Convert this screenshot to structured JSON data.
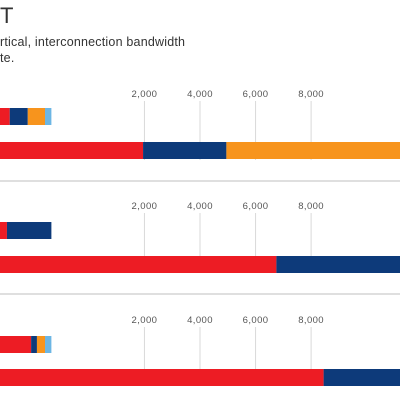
{
  "header": {
    "title": "T",
    "subtitle_lines": [
      "rtical, interconnection bandwidth",
      "te."
    ]
  },
  "colors": {
    "red": "#ed1c24",
    "navy": "#0d3a7a",
    "orange": "#f7941d",
    "light_blue": "#6cb6e4",
    "gridline": "#d9d9d9",
    "divider": "#bfbfbf"
  },
  "chart_data": [
    {
      "type": "bar",
      "orientation": "horizontal",
      "stacked": true,
      "xlim": [
        -3200,
        11200
      ],
      "xticks": [
        2000,
        4000,
        6000,
        8000
      ],
      "tick_labels": [
        "2,000",
        "4,000",
        "6,000",
        "8,000"
      ],
      "bars": [
        {
          "segments": [
            {
              "color": "red",
              "start": -3200,
              "end": -2850
            },
            {
              "color": "navy",
              "start": -2850,
              "end": -2200
            },
            {
              "color": "orange",
              "start": -2200,
              "end": -1580
            },
            {
              "color": "light_blue",
              "start": -1580,
              "end": -1350
            }
          ]
        },
        {
          "segments": [
            {
              "color": "red",
              "start": -3200,
              "end": 1950
            },
            {
              "color": "navy",
              "start": 1950,
              "end": 4950
            },
            {
              "color": "orange",
              "start": 4950,
              "end": 11200
            }
          ]
        }
      ]
    },
    {
      "type": "bar",
      "orientation": "horizontal",
      "stacked": true,
      "xlim": [
        -3200,
        11200
      ],
      "xticks": [
        2000,
        4000,
        6000,
        8000
      ],
      "tick_labels": [
        "2,000",
        "4,000",
        "6,000",
        "8,000"
      ],
      "bars": [
        {
          "segments": [
            {
              "color": "red",
              "start": -3200,
              "end": -2950
            },
            {
              "color": "navy",
              "start": -2950,
              "end": -1350
            }
          ]
        },
        {
          "segments": [
            {
              "color": "red",
              "start": -3200,
              "end": 6750
            },
            {
              "color": "navy",
              "start": 6750,
              "end": 11200
            }
          ]
        }
      ]
    },
    {
      "type": "bar",
      "orientation": "horizontal",
      "stacked": true,
      "xlim": [
        -3200,
        11200
      ],
      "xticks": [
        2000,
        4000,
        6000,
        8000
      ],
      "tick_labels": [
        "2,000",
        "4,000",
        "6,000",
        "8,000"
      ],
      "bars": [
        {
          "segments": [
            {
              "color": "red",
              "start": -3200,
              "end": -2080
            },
            {
              "color": "navy",
              "start": -2080,
              "end": -1870
            },
            {
              "color": "orange",
              "start": -1870,
              "end": -1580
            },
            {
              "color": "light_blue",
              "start": -1580,
              "end": -1350
            }
          ]
        },
        {
          "segments": [
            {
              "color": "red",
              "start": -3200,
              "end": 8450
            },
            {
              "color": "navy",
              "start": 8450,
              "end": 11200
            }
          ]
        }
      ]
    }
  ]
}
